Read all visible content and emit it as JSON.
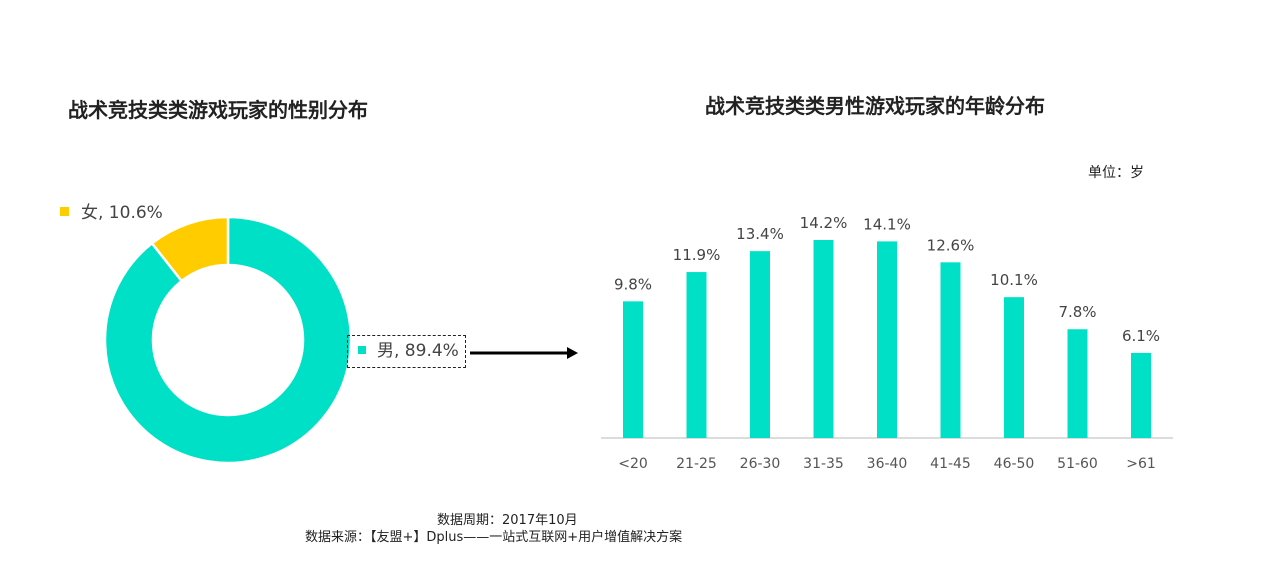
{
  "chart_data": [
    {
      "type": "pie",
      "title": "战术竞技类类游戏玩家的性别分布",
      "hole": true,
      "slices": [
        {
          "label": "男",
          "value": 89.4,
          "display": "男, 89.4%",
          "color": "#00E0C7"
        },
        {
          "label": "女",
          "value": 10.6,
          "display": "女, 10.6%",
          "color": "#FFCC00"
        }
      ]
    },
    {
      "type": "bar",
      "title": "战术竞技类类男性游戏玩家的年龄分布",
      "unit": "单位：岁",
      "categories": [
        "<20",
        "21-25",
        "26-30",
        "31-35",
        "36-40",
        "41-45",
        "46-50",
        "51-60",
        ">61"
      ],
      "values": [
        9.8,
        11.9,
        13.4,
        14.2,
        14.1,
        12.6,
        10.1,
        7.8,
        6.1
      ],
      "labels": [
        "9.8%",
        "11.9%",
        "13.4%",
        "14.2%",
        "14.1%",
        "12.6%",
        "10.1%",
        "7.8%",
        "6.1%"
      ],
      "color": "#00E0C7",
      "ylim": [
        0,
        14.2
      ],
      "grid": false
    }
  ],
  "footnotes": {
    "period": "数据周期：2017年10月",
    "source": "数据来源：【友盟+】Dplus——一站式互联网+用户增值解决方案"
  }
}
